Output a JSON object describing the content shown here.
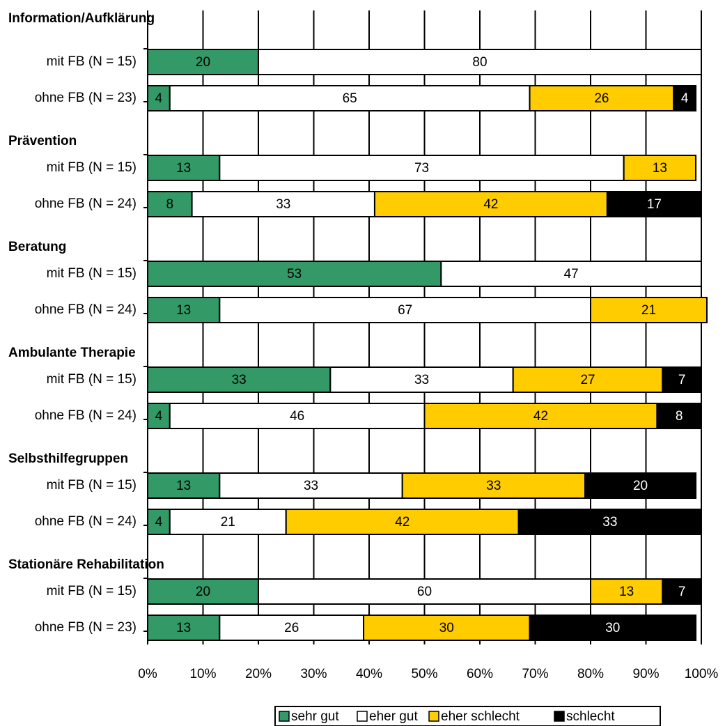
{
  "chart_data": {
    "type": "stacked-barh",
    "groups": [
      "Information/Aufklärung",
      "Prävention",
      "Beratung",
      "Ambulante Therapie",
      "Selbsthilfegruppen",
      "Stationäre Rehabilitation"
    ],
    "categories": [
      "mit FB (N = 15)",
      "ohne FB (N = 23)",
      "mit FB (N = 15)",
      "ohne FB (N = 24)",
      "mit FB (N = 15)",
      "ohne FB (N = 24)",
      "mit FB (N = 15)",
      "ohne FB (N = 24)",
      "mit FB (N = 15)",
      "ohne FB (N = 24)",
      "mit FB (N = 15)",
      "ohne FB (N = 23)"
    ],
    "series": [
      {
        "name": "sehr gut",
        "color": "#339966",
        "label_color": "#000000",
        "values": [
          20,
          4,
          13,
          8,
          53,
          13,
          33,
          4,
          13,
          4,
          20,
          13
        ]
      },
      {
        "name": "eher gut",
        "color": "#ffffff",
        "label_color": "#000000",
        "values": [
          80,
          65,
          73,
          33,
          47,
          67,
          33,
          46,
          33,
          21,
          60,
          26
        ]
      },
      {
        "name": "eher schlecht",
        "color": "#ffcc00",
        "label_color": "#000000",
        "values": [
          null,
          26,
          13,
          42,
          null,
          21,
          27,
          42,
          33,
          42,
          13,
          30
        ]
      },
      {
        "name": "schlecht",
        "color": "#000000",
        "label_color": "#ffffff",
        "values": [
          null,
          4,
          null,
          17,
          null,
          null,
          7,
          8,
          20,
          33,
          7,
          30
        ]
      }
    ],
    "xlim": [
      0,
      100
    ],
    "xticks": [
      {
        "value": 0,
        "label": "0%"
      },
      {
        "value": 10,
        "label": "10%"
      },
      {
        "value": 20,
        "label": "20%"
      },
      {
        "value": 30,
        "label": "30%"
      },
      {
        "value": 40,
        "label": "40%"
      },
      {
        "value": 50,
        "label": "50%"
      },
      {
        "value": 60,
        "label": "60%"
      },
      {
        "value": 70,
        "label": "70%"
      },
      {
        "value": 80,
        "label": "80%"
      },
      {
        "value": 90,
        "label": "90%"
      },
      {
        "value": 100,
        "label": "100%"
      }
    ],
    "grid": true,
    "legend": "bottom"
  }
}
